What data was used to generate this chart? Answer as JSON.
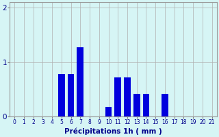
{
  "categories": [
    0,
    1,
    2,
    3,
    4,
    5,
    6,
    7,
    8,
    9,
    10,
    11,
    12,
    13,
    14,
    15,
    16,
    17,
    18,
    19,
    20,
    21
  ],
  "values": [
    0,
    0,
    0,
    0,
    0,
    0.78,
    0.78,
    1.28,
    0,
    0,
    0.18,
    0.72,
    0.72,
    0.42,
    0.42,
    0,
    0.42,
    0,
    0,
    0,
    0,
    0
  ],
  "bar_color": "#0000dd",
  "background_color": "#d6f5f5",
  "grid_color": "#b0b0b0",
  "xlabel": "Précipitations 1h ( mm )",
  "xlabel_color": "#00008b",
  "tick_color": "#00008b",
  "ylim": [
    0,
    2.1
  ],
  "yticks": [
    0,
    1,
    2
  ],
  "ytick_labels": [
    "0",
    "1",
    "2"
  ],
  "bar_width": 0.7
}
